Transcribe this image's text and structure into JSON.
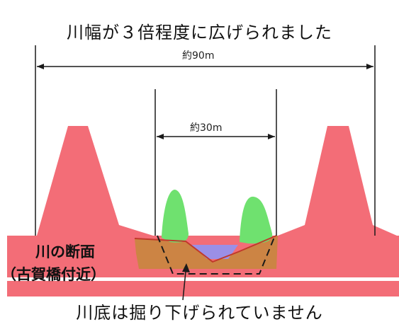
{
  "title": "川幅が３倍程度に広げられました",
  "outer_width_label": "約90m",
  "inner_width_label": "約30m",
  "section_label_line1": "川の断面",
  "section_label_line2": "（古賀橋付近）",
  "bottom_caption": "川底は掘り下げられていません",
  "colors": {
    "embankment": "#f36d77",
    "embankment_edge": "#d94a55",
    "vegetation": "#6fe16f",
    "dredge": "#c8863e",
    "water": "#9b8fe6",
    "riverbed_line": "#c0392b",
    "white_band": "#ffffff",
    "dimension_line": "#1a1a1a"
  }
}
